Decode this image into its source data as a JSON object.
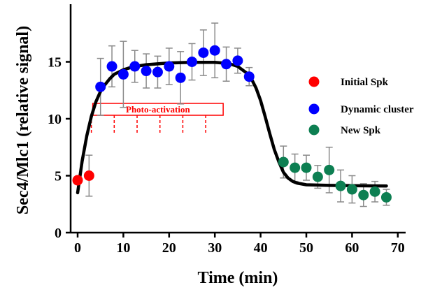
{
  "chart_data": {
    "type": "scatter",
    "xlabel": "Time (min)",
    "ylabel": "Sec4/Mlc1 (relative signal)",
    "xlim": [
      -1,
      70
    ],
    "ylim": [
      0,
      18
    ],
    "xticks": [
      0,
      10,
      20,
      30,
      40,
      50,
      60,
      70
    ],
    "yticks": [
      0,
      5,
      10,
      15
    ],
    "grid": false,
    "legend_position": "right",
    "series": [
      {
        "name": "Initial Spk",
        "color": "#ff0000",
        "points": [
          {
            "x": 0,
            "y": 4.6,
            "err": 0
          },
          {
            "x": 2.5,
            "y": 5.0,
            "err": 1.8
          }
        ]
      },
      {
        "name": "Dynamic cluster",
        "color": "#0000ff",
        "points": [
          {
            "x": 5,
            "y": 12.8,
            "err": 2.5
          },
          {
            "x": 7.5,
            "y": 14.6,
            "err": 1.8
          },
          {
            "x": 10,
            "y": 13.9,
            "err": 2.9
          },
          {
            "x": 12.5,
            "y": 14.6,
            "err": 1.4
          },
          {
            "x": 15,
            "y": 14.2,
            "err": 1.5
          },
          {
            "x": 17.5,
            "y": 14.1,
            "err": 1.4
          },
          {
            "x": 20,
            "y": 14.6,
            "err": 1.6
          },
          {
            "x": 22.5,
            "y": 13.6,
            "err": 2.3
          },
          {
            "x": 25,
            "y": 15.0,
            "err": 1.6
          },
          {
            "x": 27.5,
            "y": 15.8,
            "err": 2.0
          },
          {
            "x": 30,
            "y": 16.0,
            "err": 2.4
          },
          {
            "x": 32.5,
            "y": 14.8,
            "err": 1.5
          },
          {
            "x": 35,
            "y": 15.1,
            "err": 1.1
          },
          {
            "x": 37.5,
            "y": 13.7,
            "err": 0.8
          }
        ]
      },
      {
        "name": "New Spk",
        "color": "#0d7f52",
        "points": [
          {
            "x": 45,
            "y": 6.2,
            "err": 1.4
          },
          {
            "x": 47.5,
            "y": 5.7,
            "err": 1.2
          },
          {
            "x": 50,
            "y": 5.7,
            "err": 1.1
          },
          {
            "x": 52.5,
            "y": 4.9,
            "err": 1.0
          },
          {
            "x": 55,
            "y": 5.5,
            "err": 2.0
          },
          {
            "x": 57.5,
            "y": 4.1,
            "err": 1.4
          },
          {
            "x": 60,
            "y": 3.8,
            "err": 1.2
          },
          {
            "x": 62.5,
            "y": 3.3,
            "err": 1.0
          },
          {
            "x": 65,
            "y": 3.6,
            "err": 0.9
          },
          {
            "x": 67.5,
            "y": 3.1,
            "err": 0.7
          }
        ]
      }
    ],
    "fit_curve": {
      "color": "#000000",
      "points": [
        [
          0,
          3.5
        ],
        [
          1,
          6.3
        ],
        [
          2,
          8.5
        ],
        [
          3,
          10.2
        ],
        [
          4,
          11.5
        ],
        [
          5,
          12.4
        ],
        [
          6,
          13.0
        ],
        [
          7,
          13.5
        ],
        [
          8,
          13.9
        ],
        [
          10,
          14.3
        ],
        [
          12,
          14.55
        ],
        [
          15,
          14.75
        ],
        [
          20,
          14.9
        ],
        [
          25,
          14.95
        ],
        [
          30,
          14.95
        ],
        [
          33,
          14.85
        ],
        [
          35,
          14.6
        ],
        [
          37,
          14.0
        ],
        [
          38,
          13.5
        ],
        [
          39,
          12.7
        ],
        [
          40,
          11.6
        ],
        [
          41,
          10.2
        ],
        [
          42,
          8.7
        ],
        [
          43,
          7.3
        ],
        [
          44,
          6.2
        ],
        [
          45,
          5.3
        ],
        [
          46,
          4.8
        ],
        [
          47,
          4.5
        ],
        [
          48,
          4.35
        ],
        [
          50,
          4.2
        ],
        [
          55,
          4.15
        ],
        [
          60,
          4.12
        ],
        [
          67.5,
          4.1
        ]
      ]
    },
    "annotation": {
      "label": "Photo-activation",
      "color": "#ff0000",
      "x_start": 3,
      "x_end": 28,
      "pulse_times": [
        3,
        8,
        13,
        18,
        23,
        28
      ]
    }
  }
}
